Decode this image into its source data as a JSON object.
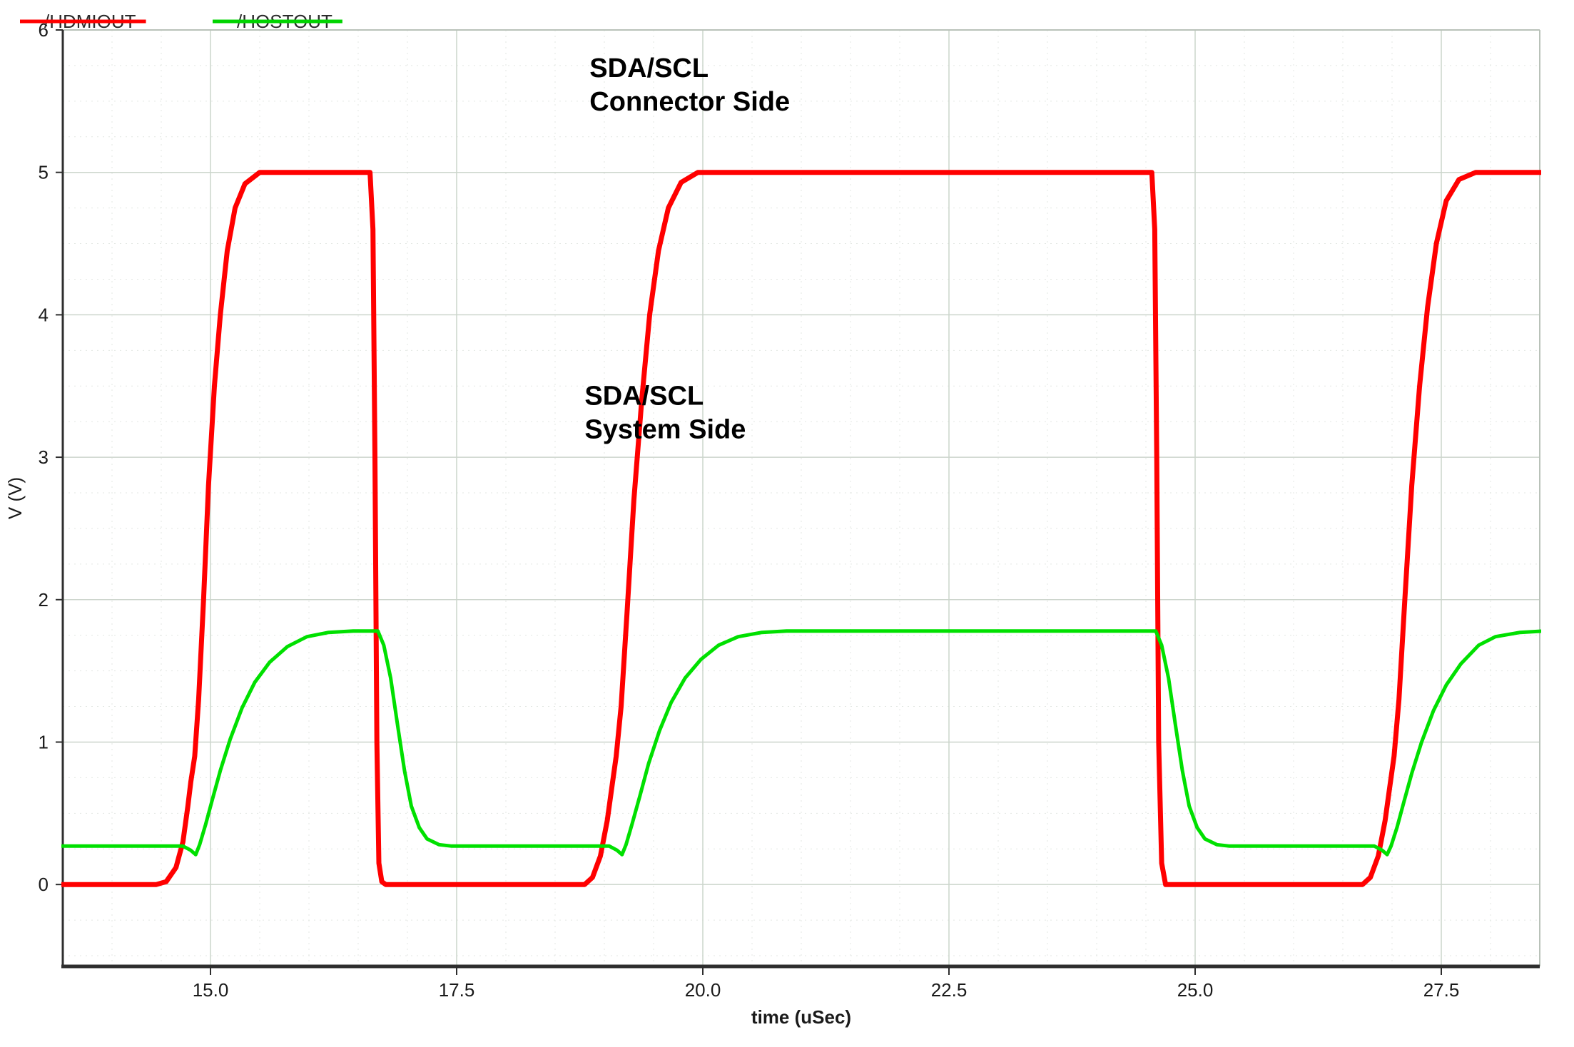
{
  "chart_data": {
    "type": "line",
    "title": "",
    "xlabel": "time (uSec)",
    "ylabel": "V (V)",
    "x_range": [
      13.5,
      28.5
    ],
    "y_range": [
      -0.575,
      6.0
    ],
    "x_minor_step": 0.5,
    "y_minor_step": 0.25,
    "grid": true,
    "x_ticks": [
      {
        "v": 15.0,
        "label": "15.0"
      },
      {
        "v": 17.5,
        "label": "17.5"
      },
      {
        "v": 20.0,
        "label": "20.0"
      },
      {
        "v": 22.5,
        "label": "22.5"
      },
      {
        "v": 25.0,
        "label": "25.0"
      },
      {
        "v": 27.5,
        "label": "27.5"
      }
    ],
    "y_ticks": [
      {
        "v": 0,
        "label": "0"
      },
      {
        "v": 1,
        "label": "1"
      },
      {
        "v": 2,
        "label": "2"
      },
      {
        "v": 3,
        "label": "3"
      },
      {
        "v": 4,
        "label": "4"
      },
      {
        "v": 5,
        "label": "5"
      },
      {
        "v": 6,
        "label": "6"
      }
    ],
    "legend": [
      {
        "label": "/HDMIOUT",
        "color": "#ff0000"
      },
      {
        "label": "/HOSTOUT",
        "color": "#00d400"
      }
    ],
    "annotations": [
      {
        "lines": [
          "SDA/SCL",
          "Connector Side"
        ],
        "x": 18.85,
        "y": 5.85
      },
      {
        "lines": [
          "SDA/SCL",
          "System Side"
        ],
        "x": 18.8,
        "y": 3.55
      }
    ],
    "series": [
      {
        "name": "/HDMIOUT",
        "color": "#ff0000",
        "width": 7,
        "points": [
          [
            13.45,
            0
          ],
          [
            14.45,
            0
          ],
          [
            14.55,
            0.02
          ],
          [
            14.65,
            0.12
          ],
          [
            14.72,
            0.3
          ],
          [
            14.77,
            0.55
          ],
          [
            14.8,
            0.72
          ],
          [
            14.84,
            0.9
          ],
          [
            14.88,
            1.3
          ],
          [
            14.93,
            2.0
          ],
          [
            14.98,
            2.8
          ],
          [
            15.04,
            3.5
          ],
          [
            15.1,
            4.0
          ],
          [
            15.17,
            4.45
          ],
          [
            15.25,
            4.75
          ],
          [
            15.35,
            4.92
          ],
          [
            15.5,
            5.0
          ],
          [
            16.62,
            5.0
          ],
          [
            16.65,
            4.6
          ],
          [
            16.67,
            3.0
          ],
          [
            16.69,
            1.0
          ],
          [
            16.71,
            0.15
          ],
          [
            16.74,
            0.02
          ],
          [
            16.78,
            0
          ],
          [
            18.8,
            0
          ],
          [
            18.88,
            0.05
          ],
          [
            18.96,
            0.2
          ],
          [
            19.03,
            0.45
          ],
          [
            19.08,
            0.7
          ],
          [
            19.12,
            0.9
          ],
          [
            19.17,
            1.25
          ],
          [
            19.23,
            1.9
          ],
          [
            19.3,
            2.7
          ],
          [
            19.38,
            3.4
          ],
          [
            19.46,
            4.0
          ],
          [
            19.55,
            4.45
          ],
          [
            19.65,
            4.75
          ],
          [
            19.78,
            4.93
          ],
          [
            19.95,
            5.0
          ],
          [
            24.56,
            5.0
          ],
          [
            24.59,
            4.6
          ],
          [
            24.61,
            3.0
          ],
          [
            24.63,
            1.0
          ],
          [
            24.66,
            0.15
          ],
          [
            24.7,
            0
          ],
          [
            26.7,
            0
          ],
          [
            26.78,
            0.05
          ],
          [
            26.86,
            0.2
          ],
          [
            26.93,
            0.45
          ],
          [
            26.98,
            0.7
          ],
          [
            27.02,
            0.9
          ],
          [
            27.07,
            1.3
          ],
          [
            27.13,
            2.0
          ],
          [
            27.2,
            2.8
          ],
          [
            27.28,
            3.5
          ],
          [
            27.36,
            4.05
          ],
          [
            27.45,
            4.5
          ],
          [
            27.55,
            4.8
          ],
          [
            27.68,
            4.95
          ],
          [
            27.85,
            5.0
          ],
          [
            28.55,
            5.0
          ]
        ]
      },
      {
        "name": "/HOSTOUT",
        "color": "#00e000",
        "width": 5,
        "points": [
          [
            13.45,
            0.27
          ],
          [
            14.72,
            0.27
          ],
          [
            14.8,
            0.24
          ],
          [
            14.85,
            0.21
          ],
          [
            14.89,
            0.28
          ],
          [
            14.95,
            0.42
          ],
          [
            15.02,
            0.6
          ],
          [
            15.1,
            0.8
          ],
          [
            15.2,
            1.02
          ],
          [
            15.32,
            1.24
          ],
          [
            15.45,
            1.42
          ],
          [
            15.6,
            1.56
          ],
          [
            15.78,
            1.67
          ],
          [
            15.98,
            1.74
          ],
          [
            16.2,
            1.77
          ],
          [
            16.45,
            1.78
          ],
          [
            16.7,
            1.78
          ],
          [
            16.76,
            1.68
          ],
          [
            16.83,
            1.45
          ],
          [
            16.9,
            1.12
          ],
          [
            16.97,
            0.8
          ],
          [
            17.04,
            0.55
          ],
          [
            17.12,
            0.4
          ],
          [
            17.2,
            0.32
          ],
          [
            17.32,
            0.28
          ],
          [
            17.45,
            0.27
          ],
          [
            19.05,
            0.27
          ],
          [
            19.13,
            0.24
          ],
          [
            19.18,
            0.21
          ],
          [
            19.22,
            0.28
          ],
          [
            19.28,
            0.42
          ],
          [
            19.36,
            0.62
          ],
          [
            19.45,
            0.85
          ],
          [
            19.56,
            1.08
          ],
          [
            19.68,
            1.28
          ],
          [
            19.82,
            1.45
          ],
          [
            19.98,
            1.58
          ],
          [
            20.16,
            1.68
          ],
          [
            20.36,
            1.74
          ],
          [
            20.6,
            1.77
          ],
          [
            20.85,
            1.78
          ],
          [
            24.6,
            1.78
          ],
          [
            24.66,
            1.68
          ],
          [
            24.73,
            1.45
          ],
          [
            24.8,
            1.12
          ],
          [
            24.87,
            0.8
          ],
          [
            24.94,
            0.55
          ],
          [
            25.02,
            0.4
          ],
          [
            25.1,
            0.32
          ],
          [
            25.22,
            0.28
          ],
          [
            25.35,
            0.27
          ],
          [
            26.82,
            0.27
          ],
          [
            26.9,
            0.24
          ],
          [
            26.95,
            0.21
          ],
          [
            26.99,
            0.27
          ],
          [
            27.05,
            0.4
          ],
          [
            27.12,
            0.58
          ],
          [
            27.2,
            0.78
          ],
          [
            27.3,
            1.0
          ],
          [
            27.42,
            1.22
          ],
          [
            27.55,
            1.4
          ],
          [
            27.7,
            1.55
          ],
          [
            27.88,
            1.68
          ],
          [
            28.05,
            1.74
          ],
          [
            28.3,
            1.77
          ],
          [
            28.55,
            1.78
          ]
        ]
      }
    ],
    "colors": {
      "background": "#ffffff",
      "grid_major": "#ccd5cc",
      "grid_minor": "#e3e7e3",
      "border": "#b9c2b9",
      "axis": "#2e2e2e",
      "text": "#1a1a1a",
      "annotation": "#000000"
    }
  }
}
